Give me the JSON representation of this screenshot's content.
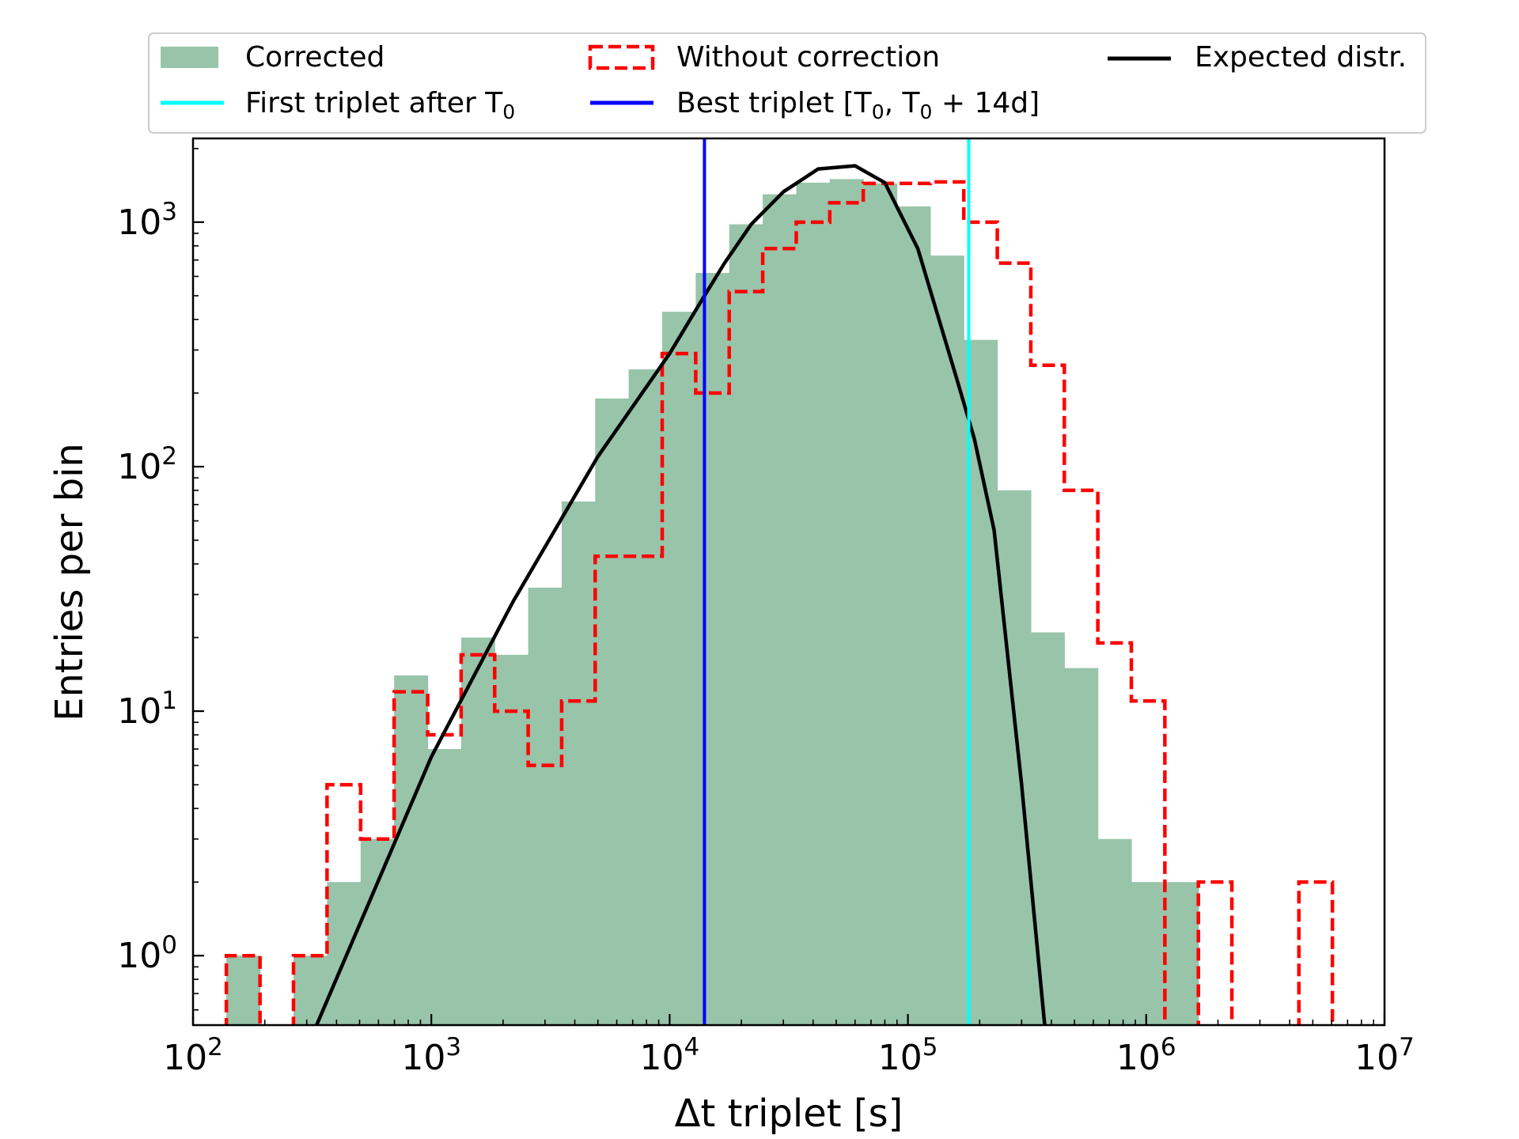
{
  "chart_data": {
    "type": "bar",
    "xlabel": "Δt triplet [s]",
    "ylabel": "Entries per bin",
    "xscale": "log",
    "yscale": "log",
    "xlim": [
      100,
      10000000
    ],
    "ylim": [
      0.52,
      2200
    ],
    "x_ticks": [
      {
        "value": 100,
        "base": "10",
        "exp": "2"
      },
      {
        "value": 1000,
        "base": "10",
        "exp": "3"
      },
      {
        "value": 10000,
        "base": "10",
        "exp": "4"
      },
      {
        "value": 100000,
        "base": "10",
        "exp": "5"
      },
      {
        "value": 1000000,
        "base": "10",
        "exp": "6"
      },
      {
        "value": 10000000,
        "base": "10",
        "exp": "7"
      }
    ],
    "y_ticks": [
      {
        "value": 1,
        "base": "10",
        "exp": "0"
      },
      {
        "value": 10,
        "base": "10",
        "exp": "1"
      },
      {
        "value": 100,
        "base": "10",
        "exp": "2"
      },
      {
        "value": 1000,
        "base": "10",
        "exp": "3"
      }
    ],
    "legend": {
      "position": "top",
      "corrected": "Corrected",
      "without": "Without correction",
      "expected": "Expected distr.",
      "first_triplet": "First triplet after T",
      "first_triplet_sub": "0",
      "best_triplet_prefix": "Best triplet [T",
      "best_triplet_sub1": "0",
      "best_triplet_mid": ", T",
      "best_triplet_sub2": "0",
      "best_triplet_suffix": " + 14d]"
    },
    "bin_edges": [
      100,
      138,
      191,
      264,
      365,
      505,
      698,
      965,
      1334,
      1844,
      2549,
      3524,
      4871,
      6733,
      9308,
      12867,
      17787,
      24588,
      33990,
      46987,
      64953,
      89789,
      124120,
      171580,
      237190,
      327890,
      453260,
      626580,
      866180,
      1197400,
      1655200,
      2288100,
      3163000,
      4372500,
      6044300,
      8355500
    ],
    "series": [
      {
        "name": "Corrected",
        "color": "#98c4aa",
        "values": [
          0,
          1,
          0,
          1,
          2,
          3,
          14,
          7,
          20,
          17,
          32,
          72,
          190,
          250,
          430,
          620,
          980,
          1300,
          1450,
          1500,
          1440,
          1160,
          730,
          330,
          80,
          21,
          15,
          3,
          2,
          2,
          0,
          0,
          0,
          0,
          0
        ]
      },
      {
        "name": "Without correction",
        "color": "#ff0000",
        "values": [
          0,
          1,
          0,
          1,
          5,
          3,
          12,
          8,
          17,
          10,
          6,
          11,
          43,
          43,
          290,
          200,
          520,
          780,
          1000,
          1200,
          1440,
          1440,
          1460,
          1000,
          680,
          260,
          80,
          19,
          11,
          0,
          2,
          0,
          0,
          2,
          0
        ]
      }
    ],
    "expected_curve": {
      "name": "Expected distr.",
      "color": "#000000",
      "x": [
        330,
        1000,
        2200,
        5000,
        10000,
        14000,
        17000,
        22000,
        30000,
        42000,
        60000,
        80000,
        110000,
        160000,
        190000,
        230000,
        300000,
        375000
      ],
      "y": [
        0.52,
        6.5,
        28,
        110,
        290,
        500,
        680,
        980,
        1330,
        1650,
        1700,
        1450,
        780,
        230,
        130,
        55,
        5,
        0.52
      ]
    },
    "vertical_lines": [
      {
        "name": "Best triplet",
        "x": 14000,
        "color": "#0000ff"
      },
      {
        "name": "First triplet after T0",
        "x": 180000,
        "color": "#00ffff"
      }
    ]
  }
}
